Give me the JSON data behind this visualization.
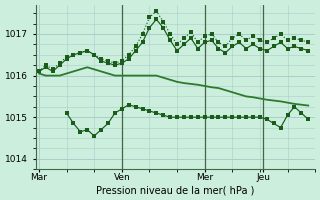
{
  "background_color": "#cceedd",
  "grid_color": "#aacccc",
  "line_dark": "#1a5c1a",
  "line_medium": "#2d7a2d",
  "xlabel": "Pression niveau de la mer( hPa )",
  "yticks": [
    1014,
    1015,
    1016,
    1017
  ],
  "ylim": [
    1013.75,
    1017.7
  ],
  "xtick_labels": [
    "Mar",
    "Ven",
    "Mer",
    "Jeu"
  ],
  "xtick_positions": [
    0,
    24,
    48,
    65
  ],
  "xlim": [
    -1,
    80
  ],
  "vlines": [
    24,
    48,
    65
  ],
  "s1_x": [
    0,
    2,
    4,
    6,
    8,
    10,
    12,
    14,
    16,
    18,
    20,
    22,
    24,
    26,
    28,
    30,
    32,
    34,
    36,
    38,
    40,
    42,
    44,
    46,
    48,
    50,
    52,
    54,
    56,
    58,
    60,
    62,
    64,
    66,
    68,
    70,
    72,
    74,
    76,
    78
  ],
  "s1_y": [
    1016.1,
    1016.25,
    1016.15,
    1016.3,
    1016.45,
    1016.5,
    1016.55,
    1016.6,
    1016.5,
    1016.4,
    1016.35,
    1016.3,
    1016.35,
    1016.5,
    1016.7,
    1017.0,
    1017.4,
    1017.55,
    1017.3,
    1017.0,
    1016.75,
    1016.9,
    1017.05,
    1016.8,
    1016.95,
    1017.0,
    1016.8,
    1016.7,
    1016.9,
    1017.0,
    1016.85,
    1016.95,
    1016.85,
    1016.8,
    1016.9,
    1017.0,
    1016.85,
    1016.9,
    1016.85,
    1016.8
  ],
  "s2_x": [
    0,
    2,
    4,
    6,
    8,
    10,
    12,
    14,
    16,
    18,
    20,
    22,
    24,
    26,
    28,
    30,
    32,
    34,
    36,
    38,
    40,
    42,
    44,
    46,
    48,
    50,
    52,
    54,
    56,
    58,
    60,
    62,
    64,
    66,
    68,
    70,
    72,
    74,
    76,
    78
  ],
  "s2_y": [
    1016.1,
    1016.2,
    1016.1,
    1016.25,
    1016.4,
    1016.5,
    1016.55,
    1016.6,
    1016.5,
    1016.35,
    1016.3,
    1016.25,
    1016.3,
    1016.4,
    1016.6,
    1016.8,
    1017.15,
    1017.35,
    1017.15,
    1016.85,
    1016.6,
    1016.75,
    1016.9,
    1016.65,
    1016.8,
    1016.85,
    1016.65,
    1016.55,
    1016.7,
    1016.8,
    1016.65,
    1016.75,
    1016.65,
    1016.6,
    1016.7,
    1016.8,
    1016.65,
    1016.7,
    1016.65,
    1016.6
  ],
  "s3_x": [
    0,
    2,
    4,
    6,
    8,
    10,
    12,
    14,
    16,
    18,
    20,
    22,
    24,
    26,
    28,
    30,
    32,
    34,
    36,
    38,
    40,
    42,
    44,
    46,
    48,
    50,
    52,
    54,
    56,
    58,
    60,
    62,
    64,
    66,
    68,
    70,
    72,
    74,
    76,
    78
  ],
  "s3_y": [
    1016.05,
    1016.0,
    1016.0,
    1016.0,
    1016.05,
    1016.1,
    1016.15,
    1016.2,
    1016.15,
    1016.1,
    1016.05,
    1016.0,
    1016.0,
    1016.0,
    1016.0,
    1016.0,
    1016.0,
    1016.0,
    1015.95,
    1015.9,
    1015.85,
    1015.82,
    1015.8,
    1015.78,
    1015.75,
    1015.72,
    1015.7,
    1015.65,
    1015.6,
    1015.55,
    1015.5,
    1015.48,
    1015.45,
    1015.42,
    1015.4,
    1015.38,
    1015.35,
    1015.32,
    1015.3,
    1015.28
  ],
  "s4_x": [
    8,
    10,
    12,
    14,
    16,
    18,
    20,
    22,
    24,
    26,
    28,
    30,
    32,
    34,
    36,
    38,
    40,
    42,
    44,
    46,
    48,
    50,
    52,
    54,
    56,
    58,
    60,
    62,
    64,
    66,
    68,
    70,
    72,
    74,
    76,
    78
  ],
  "s4_y": [
    1015.1,
    1014.85,
    1014.65,
    1014.7,
    1014.55,
    1014.7,
    1014.85,
    1015.1,
    1015.2,
    1015.3,
    1015.25,
    1015.2,
    1015.15,
    1015.1,
    1015.05,
    1015.0,
    1015.0,
    1015.0,
    1015.0,
    1015.0,
    1015.0,
    1015.0,
    1015.0,
    1015.0,
    1015.0,
    1015.0,
    1015.0,
    1015.0,
    1015.0,
    1014.95,
    1014.85,
    1014.75,
    1015.05,
    1015.25,
    1015.1,
    1014.95
  ]
}
